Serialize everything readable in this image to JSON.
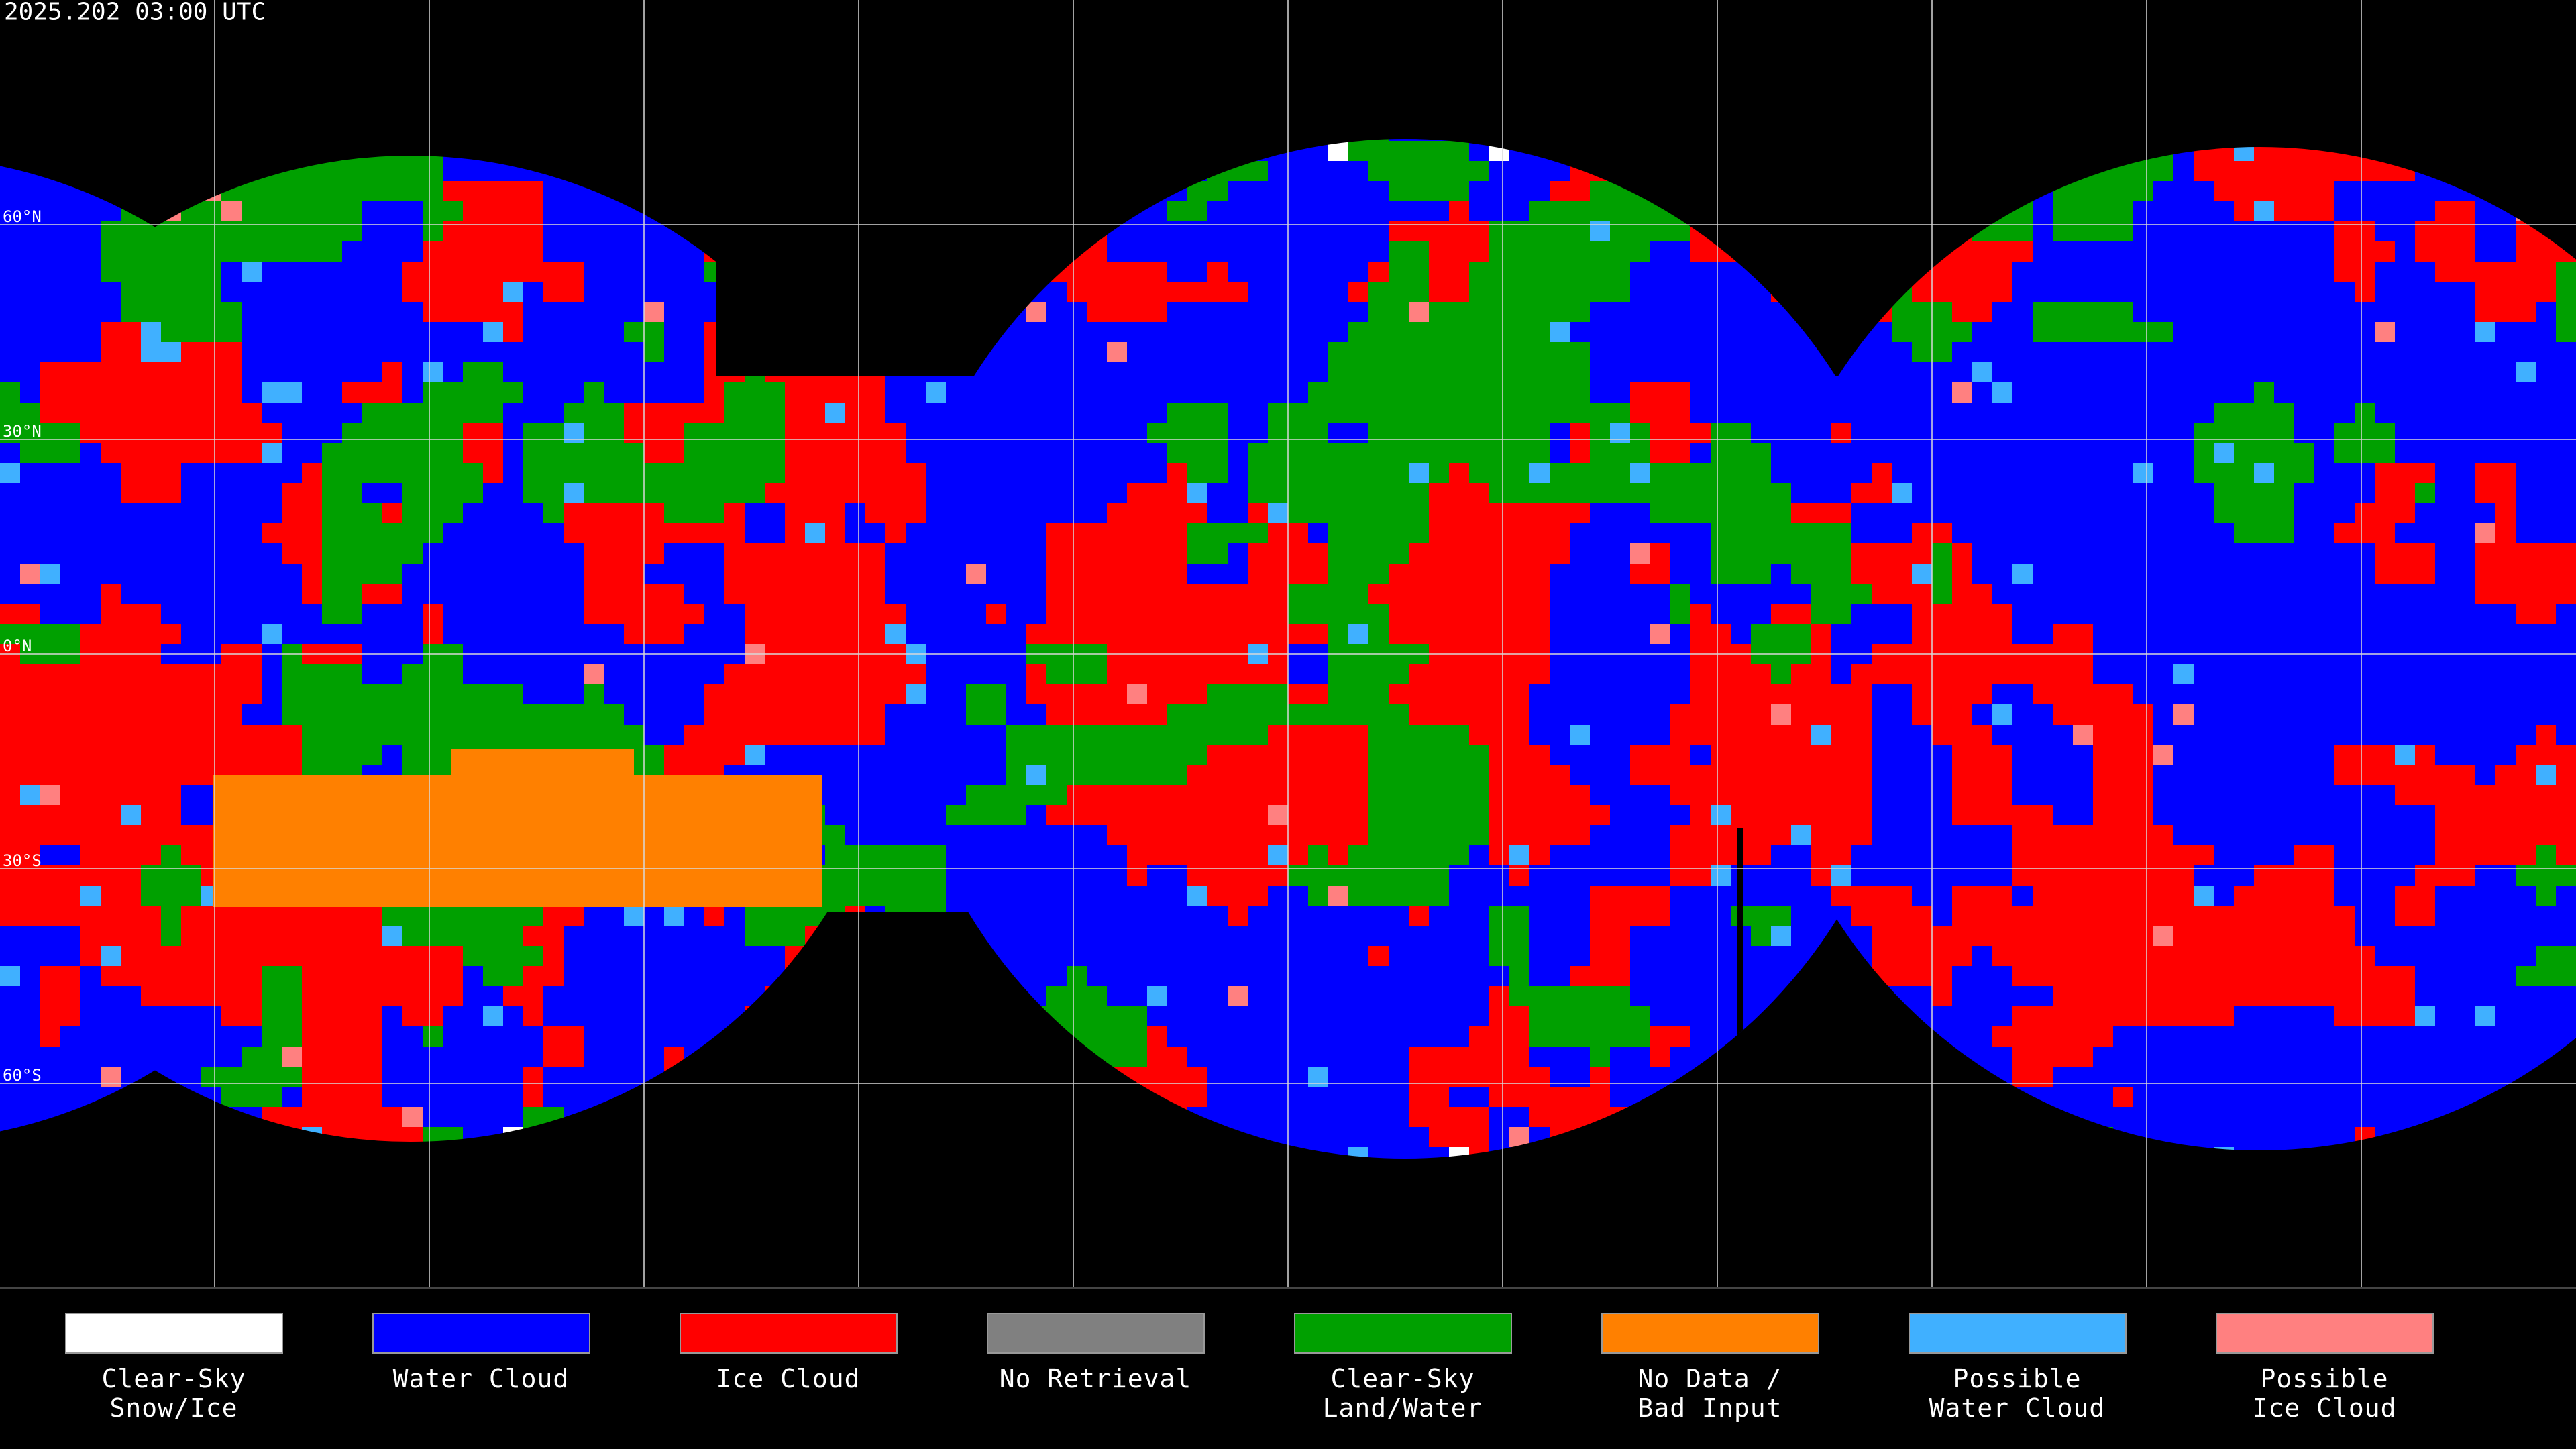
{
  "header": {
    "title": "2025.202 03:00 UTC"
  },
  "map": {
    "lat_labels": [
      "60°N",
      "30°N",
      "0°N",
      "30°S",
      "60°S"
    ]
  },
  "legend": [
    {
      "lines": [
        "Clear-Sky",
        "Snow/Ice"
      ],
      "color": "#ffffff"
    },
    {
      "lines": [
        "Water Cloud"
      ],
      "color": "#0000ff"
    },
    {
      "lines": [
        "Ice Cloud"
      ],
      "color": "#ff0000"
    },
    {
      "lines": [
        "No Retrieval"
      ],
      "color": "#808080"
    },
    {
      "lines": [
        "Clear-Sky",
        "Land/Water"
      ],
      "color": "#00a000"
    },
    {
      "lines": [
        "No Data /",
        "Bad Input"
      ],
      "color": "#ff8000"
    },
    {
      "lines": [
        "Possible",
        "Water Cloud"
      ],
      "color": "#40b0ff"
    },
    {
      "lines": [
        "Possible",
        "Ice Cloud"
      ],
      "color": "#ff8080"
    }
  ]
}
